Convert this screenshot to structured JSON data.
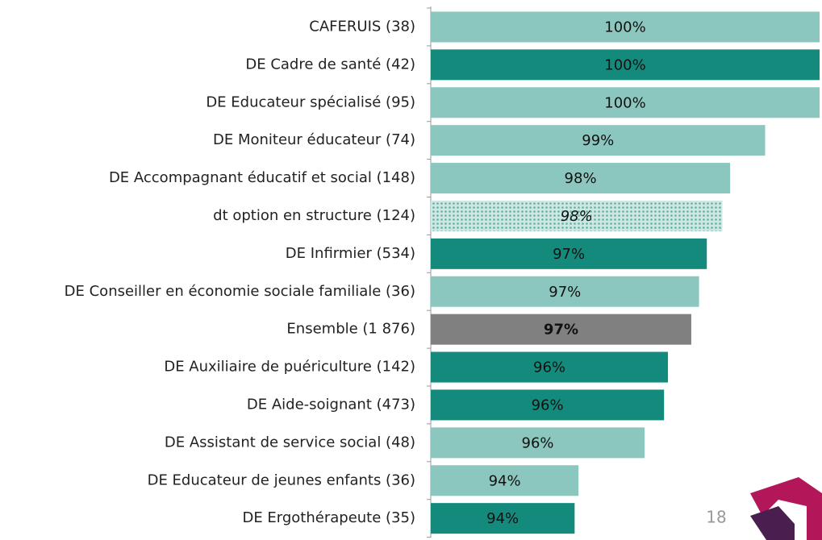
{
  "chart_data": {
    "type": "bar",
    "orientation": "horizontal",
    "categories": [
      "CAFERUIS (38)",
      "DE Cadre de santé (42)",
      "DE Educateur spécialisé (95)",
      "DE Moniteur éducateur (74)",
      "DE Accompagnant éducatif et social (148)",
      "dt option en structure (124)",
      "DE Infirmier (534)",
      "DE Conseiller en économie sociale familiale (36)",
      "Ensemble (1 876)",
      "DE Auxiliaire de puériculture (142)",
      "DE Aide-soignant (473)",
      "DE Assistant de service social (48)",
      "DE Educateur de jeunes enfants (36)",
      "DE Ergothérapeute (35)"
    ],
    "values": [
      100,
      100,
      100,
      98.6,
      97.7,
      97.5,
      97.1,
      96.9,
      96.7,
      96.1,
      96.0,
      95.5,
      93.8,
      93.7
    ],
    "value_labels": [
      "100%",
      "100%",
      "100%",
      "99%",
      "98%",
      "98%",
      "97%",
      "97%",
      "97%",
      "96%",
      "96%",
      "96%",
      "94%",
      "94%"
    ],
    "colors": [
      "#8cc7bf",
      "#148a7d",
      "#8cc7bf",
      "#8cc7bf",
      "#8cc7bf",
      "#8cc7bf",
      "#148a7d",
      "#8cc7bf",
      "#808080",
      "#148a7d",
      "#148a7d",
      "#8cc7bf",
      "#8cc7bf",
      "#148a7d"
    ],
    "dotted": [
      5
    ],
    "xlim": [
      90,
      100
    ]
  },
  "page_number": "18"
}
